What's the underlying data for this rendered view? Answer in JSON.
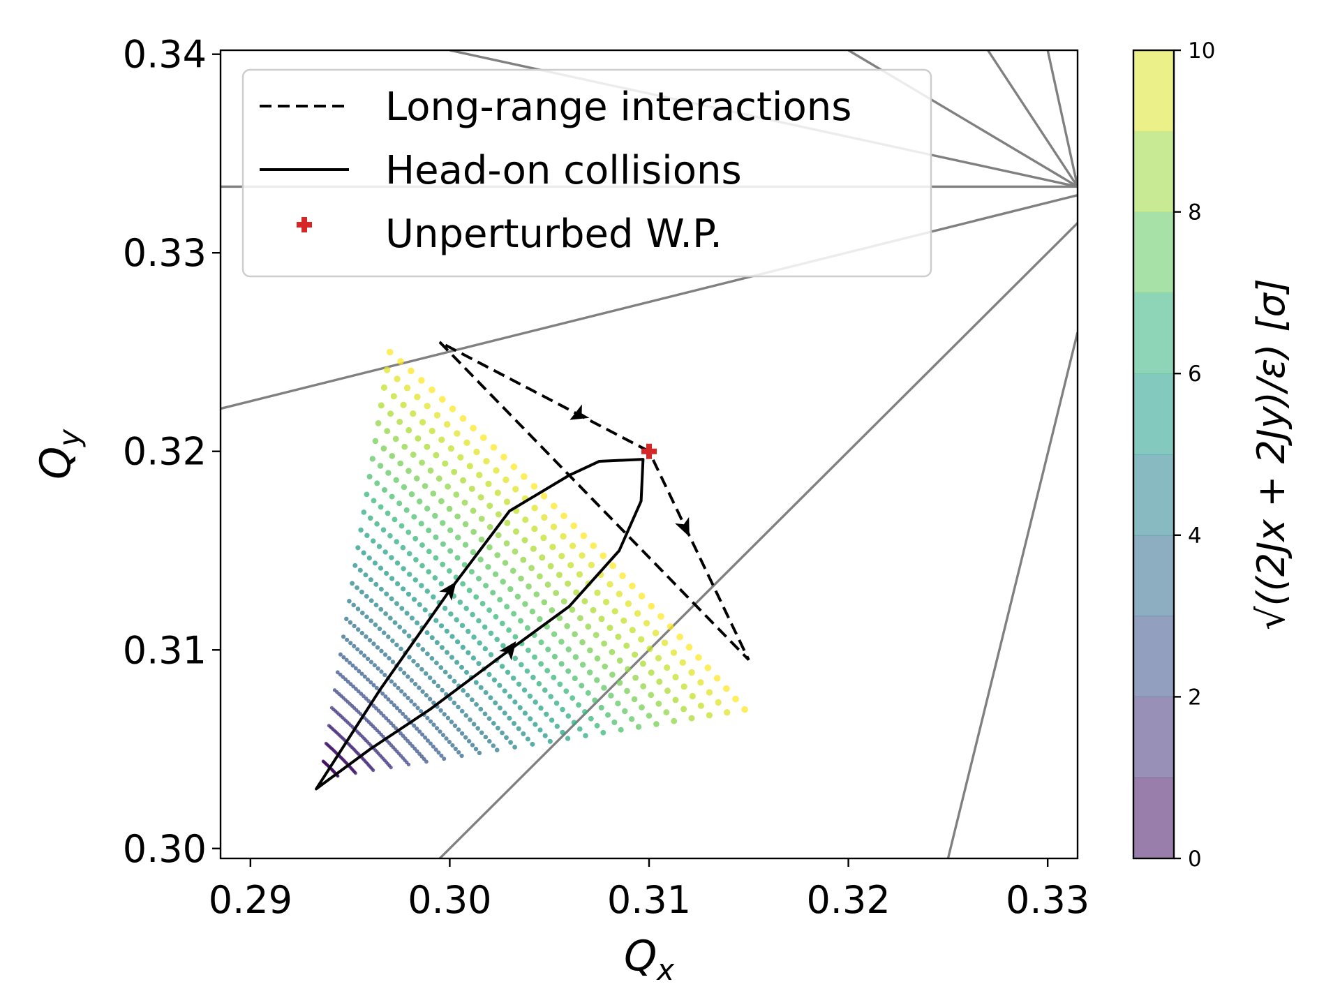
{
  "chart_data": {
    "type": "scatter",
    "xlabel": "Q",
    "xlabel_sub": "x",
    "ylabel": "Q",
    "ylabel_sub": "y",
    "xlim": [
      0.2885,
      0.3315
    ],
    "ylim": [
      0.2995,
      0.3402
    ],
    "xticks": [
      0.29,
      0.3,
      0.31,
      0.32,
      0.33
    ],
    "xtick_labels": [
      "0.29",
      "0.30",
      "0.31",
      "0.32",
      "0.33"
    ],
    "yticks": [
      0.3,
      0.31,
      0.32,
      0.33,
      0.34
    ],
    "ytick_labels": [
      "0.30",
      "0.31",
      "0.32",
      "0.33",
      "0.34"
    ],
    "grid": false,
    "legend": {
      "placement": "top-left",
      "entries": [
        {
          "label": "Long-range interactions",
          "style": "dashed-line",
          "color": "#000000"
        },
        {
          "label": "Head-on collisions",
          "style": "solid-line",
          "color": "#000000"
        },
        {
          "label": "Unperturbed W.P.",
          "style": "plus-marker",
          "color": "#d62728"
        }
      ]
    },
    "colorbar": {
      "label": "√((2Jx + 2Jy)/ε) [σ]",
      "min": 0,
      "max": 10,
      "ticks": [
        0,
        2,
        4,
        6,
        8,
        10
      ],
      "tick_labels": [
        "0",
        "2",
        "4",
        "6",
        "8",
        "10"
      ],
      "colormap": "viridis",
      "alpha": 0.5,
      "bands": 10
    },
    "working_point": {
      "x": 0.31,
      "y": 0.32,
      "color": "#d62728"
    },
    "resonance_lines": {
      "color": "#808080",
      "lines": [
        {
          "x1": 0.2885,
          "y1": 0.33333,
          "x2": 0.3315,
          "y2": 0.33333
        },
        {
          "x1": 0.2885,
          "y1": 0.32215,
          "x2": 0.3315,
          "y2": 0.3329
        },
        {
          "x1": 0.2995,
          "y1": 0.2995,
          "x2": 0.3315,
          "y2": 0.3315
        },
        {
          "x1": 0.325,
          "y1": 0.2995,
          "x2": 0.3315,
          "y2": 0.326
        },
        {
          "x1": 0.3,
          "y1": 0.3402,
          "x2": 0.3315,
          "y2": 0.33333
        },
        {
          "x1": 0.32,
          "y1": 0.3402,
          "x2": 0.3315,
          "y2": 0.33333
        },
        {
          "x1": 0.327,
          "y1": 0.3402,
          "x2": 0.3315,
          "y2": 0.33333
        },
        {
          "x1": 0.33,
          "y1": 0.3402,
          "x2": 0.3315,
          "y2": 0.33333
        }
      ]
    },
    "long_range_path": [
      {
        "x": 0.31,
        "y": 0.32
      },
      {
        "x": 0.2995,
        "y": 0.3255
      },
      {
        "x": 0.315,
        "y": 0.3095
      },
      {
        "x": 0.31,
        "y": 0.32
      }
    ],
    "long_range_arrows": [
      {
        "x": 0.3065,
        "y": 0.32185,
        "dir": "left-up"
      },
      {
        "x": 0.3118,
        "y": 0.3162,
        "dir": "down"
      }
    ],
    "head_on_path": [
      {
        "x": 0.2933,
        "y": 0.303
      },
      {
        "x": 0.2965,
        "y": 0.308
      },
      {
        "x": 0.3,
        "y": 0.313
      },
      {
        "x": 0.303,
        "y": 0.317
      },
      {
        "x": 0.306,
        "y": 0.3188
      },
      {
        "x": 0.3075,
        "y": 0.3195
      },
      {
        "x": 0.3097,
        "y": 0.3196
      },
      {
        "x": 0.3096,
        "y": 0.3175
      },
      {
        "x": 0.3085,
        "y": 0.315
      },
      {
        "x": 0.306,
        "y": 0.3122
      },
      {
        "x": 0.303,
        "y": 0.31
      },
      {
        "x": 0.299,
        "y": 0.307
      },
      {
        "x": 0.296,
        "y": 0.305
      },
      {
        "x": 0.2937,
        "y": 0.3033
      }
    ],
    "head_on_arrows": [
      {
        "x": 0.3,
        "y": 0.313,
        "dir": "up-right"
      },
      {
        "x": 0.303,
        "y": 0.31,
        "dir": "up-right"
      }
    ],
    "footprint": {
      "tip": {
        "x": 0.2935,
        "y": 0.3035
      },
      "amplitude_max": 10,
      "rings": 24,
      "points_per_ring": 36,
      "outer_left": {
        "x": 0.297,
        "y": 0.325
      },
      "outer_right": {
        "x": 0.3148,
        "y": 0.307
      },
      "outer_left_bend": {
        "x": 0.3058,
        "y": 0.3185
      },
      "outer_right_bend": {
        "x": 0.3097,
        "y": 0.3145
      }
    }
  }
}
